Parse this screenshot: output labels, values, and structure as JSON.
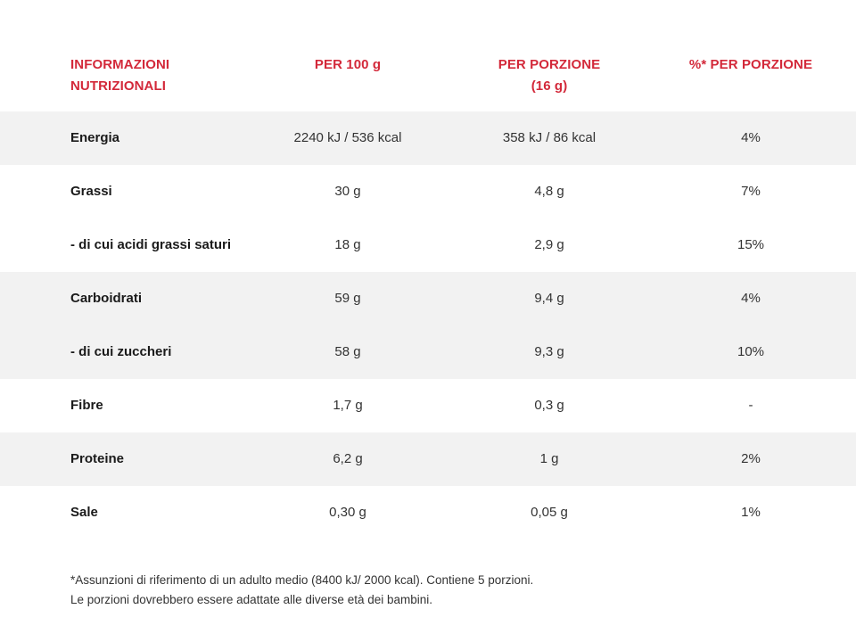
{
  "header": {
    "col0": "INFORMAZIONI NUTRIZIONALI",
    "col1": "PER 100 g",
    "col2": "PER PORZIONE (16 g)",
    "col3": "%* PER PORZIONE"
  },
  "rows": [
    {
      "label": "Energia",
      "per100": "2240 kJ / 536 kcal",
      "perPortion": "358 kJ / 86 kcal",
      "pct": "4%"
    },
    {
      "label": "Grassi",
      "per100": "30 g",
      "perPortion": "4,8 g",
      "pct": "7%"
    },
    {
      "label": "- di cui acidi grassi saturi",
      "per100": "18 g",
      "perPortion": "2,9 g",
      "pct": "15%"
    },
    {
      "label": "Carboidrati",
      "per100": "59 g",
      "perPortion": "9,4 g",
      "pct": "4%"
    },
    {
      "label": "- di cui zuccheri",
      "per100": "58 g",
      "perPortion": "9,3 g",
      "pct": "10%"
    },
    {
      "label": "Fibre",
      "per100": "1,7 g",
      "perPortion": "0,3 g",
      "pct": "-"
    },
    {
      "label": "Proteine",
      "per100": "6,2 g",
      "perPortion": "1 g",
      "pct": "2%"
    },
    {
      "label": "Sale",
      "per100": "0,30 g",
      "perPortion": "0,05 g",
      "pct": "1%"
    }
  ],
  "footnote": {
    "line1": "*Assunzioni di riferimento di un adulto medio (8400 kJ/ 2000 kcal). Contiene 5 porzioni.",
    "line2": "Le porzioni dovrebbero essere adattate alle diverse età dei bambini."
  },
  "colors": {
    "header_red": "#d3293a",
    "row_shade": "#f2f2f2"
  }
}
